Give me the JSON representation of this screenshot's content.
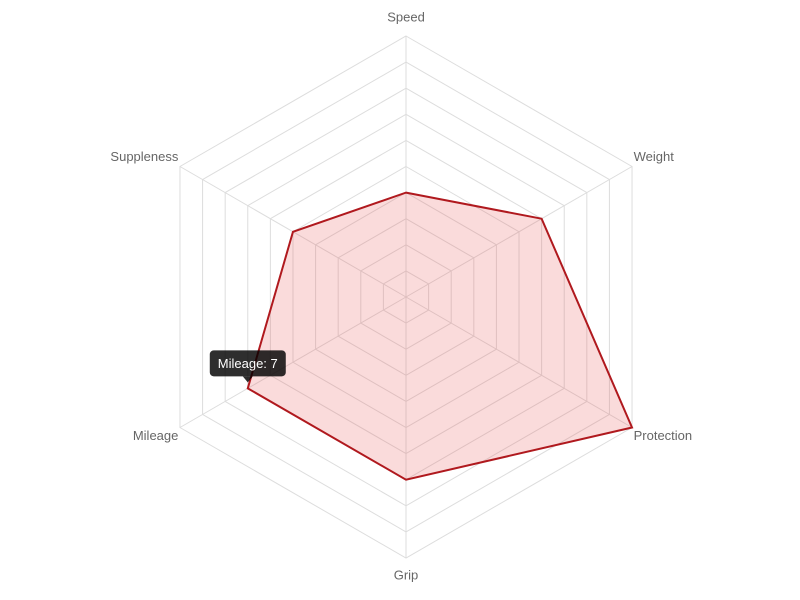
{
  "chart_data": {
    "type": "radar",
    "categories": [
      "Speed",
      "Weight",
      "Protection",
      "Grip",
      "Mileage",
      "Suppleness"
    ],
    "values": [
      4,
      6,
      10,
      7,
      7,
      5
    ],
    "color": "#b0191e",
    "fill": "rgba(230, 90, 90, 0.22)",
    "rlim": [
      0,
      10
    ],
    "rticks": [
      0,
      1,
      2,
      3,
      4,
      5,
      6,
      7,
      8,
      9,
      10
    ],
    "grid": true,
    "tooltip": {
      "text": "Mileage: 7",
      "index": 4
    }
  }
}
